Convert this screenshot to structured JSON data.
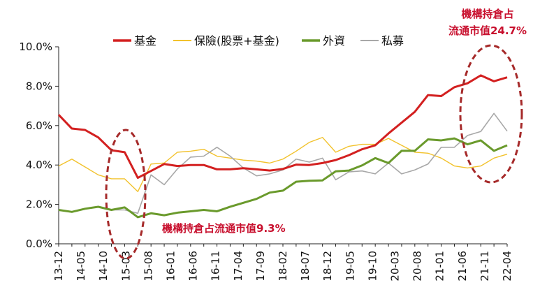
{
  "chart_data": {
    "type": "line",
    "title": "",
    "xlabel": "",
    "ylabel": "",
    "ylim": [
      0,
      10
    ],
    "y_ticks": [
      "0.0%",
      "2.0%",
      "4.0%",
      "6.0%",
      "8.0%",
      "10.0%"
    ],
    "x_tick_labels": [
      "13-12",
      "14-05",
      "14-10",
      "15-03",
      "15-08",
      "16-01",
      "16-06",
      "16-11",
      "17-04",
      "17-09",
      "18-02",
      "18-07",
      "18-12",
      "19-05",
      "19-10",
      "20-03",
      "20-08",
      "21-01",
      "21-06",
      "21-11",
      "22-04"
    ],
    "grid": false,
    "legend_position": "top",
    "series": [
      {
        "name": "基金",
        "color": "#d32020",
        "values": [
          6.55,
          5.85,
          5.78,
          5.4,
          4.75,
          4.65,
          3.35,
          3.7,
          4.05,
          3.95,
          4.0,
          4.0,
          3.78,
          3.78,
          3.84,
          3.78,
          3.72,
          3.8,
          4.02,
          4.0,
          4.1,
          4.25,
          4.5,
          4.8,
          5.0,
          5.6,
          6.15,
          6.7,
          7.55,
          7.5,
          7.95,
          8.15,
          8.55,
          8.25,
          8.45
        ]
      },
      {
        "name": "保險(股票+基金)",
        "color": "#f2c22c",
        "values": [
          3.95,
          4.3,
          3.9,
          3.5,
          3.3,
          3.3,
          2.65,
          4.05,
          4.1,
          4.65,
          4.7,
          4.8,
          4.45,
          4.35,
          4.25,
          4.2,
          4.1,
          4.3,
          4.7,
          5.15,
          5.4,
          4.65,
          4.95,
          5.05,
          5.05,
          5.35,
          5.0,
          4.65,
          4.6,
          4.35,
          3.95,
          3.85,
          3.95,
          4.35,
          4.55
        ]
      },
      {
        "name": "外資",
        "color": "#6a9a2c",
        "values": [
          1.72,
          1.62,
          1.78,
          1.88,
          1.72,
          1.85,
          1.35,
          1.55,
          1.45,
          1.58,
          1.65,
          1.72,
          1.65,
          1.88,
          2.08,
          2.28,
          2.6,
          2.7,
          3.15,
          3.2,
          3.22,
          3.68,
          3.72,
          3.98,
          4.35,
          4.1,
          4.72,
          4.72,
          5.3,
          5.25,
          5.35,
          5.05,
          5.25,
          4.72,
          5.0
        ]
      },
      {
        "name": "私募",
        "color": "#a8a8a8",
        "values": [
          1.72,
          1.62,
          1.78,
          1.88,
          1.72,
          1.72,
          1.55,
          3.5,
          3.0,
          3.8,
          4.4,
          4.45,
          4.9,
          4.45,
          3.85,
          3.45,
          3.55,
          3.75,
          4.3,
          4.15,
          4.35,
          3.25,
          3.65,
          3.7,
          3.55,
          4.1,
          3.55,
          3.75,
          4.05,
          4.9,
          4.9,
          5.5,
          5.7,
          6.62,
          5.72
        ]
      }
    ],
    "annotations": [
      {
        "text": "機構持倉占流通市值9.3%",
        "color": "#c8102e"
      },
      {
        "text_lines": [
          "機構持倉占",
          "流通市值24.7%"
        ],
        "color": "#c8102e"
      }
    ]
  }
}
